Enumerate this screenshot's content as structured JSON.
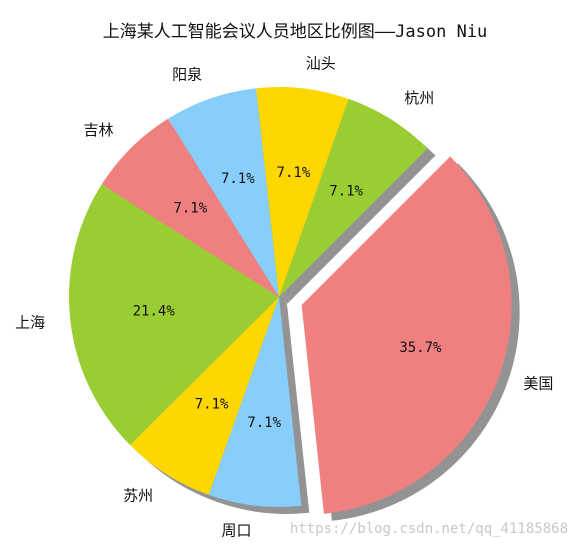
{
  "chart_data": {
    "type": "pie",
    "title": "上海某人工智能会议人员地区比例图——Jason Niu",
    "slices": [
      {
        "label": "杭州",
        "value": 7.1,
        "pct_label": "7.1%",
        "color": "#9acd32"
      },
      {
        "label": "汕头",
        "value": 7.1,
        "pct_label": "7.1%",
        "color": "#ffd700"
      },
      {
        "label": "阳泉",
        "value": 7.1,
        "pct_label": "7.1%",
        "color": "#87cefa"
      },
      {
        "label": "吉林",
        "value": 7.1,
        "pct_label": "7.1%",
        "color": "#f08080"
      },
      {
        "label": "上海",
        "value": 21.4,
        "pct_label": "21.4%",
        "color": "#9acd32"
      },
      {
        "label": "苏州",
        "value": 7.1,
        "pct_label": "7.1%",
        "color": "#ffd700"
      },
      {
        "label": "周口",
        "value": 7.1,
        "pct_label": "7.1%",
        "color": "#87cefa"
      },
      {
        "label": "美国",
        "value": 35.7,
        "pct_label": "35.7%",
        "color": "#f08080",
        "exploded": true
      }
    ],
    "start_angle_deg": 45,
    "shadow": true
  },
  "watermark": "https://blog.csdn.net/qq_41185868"
}
